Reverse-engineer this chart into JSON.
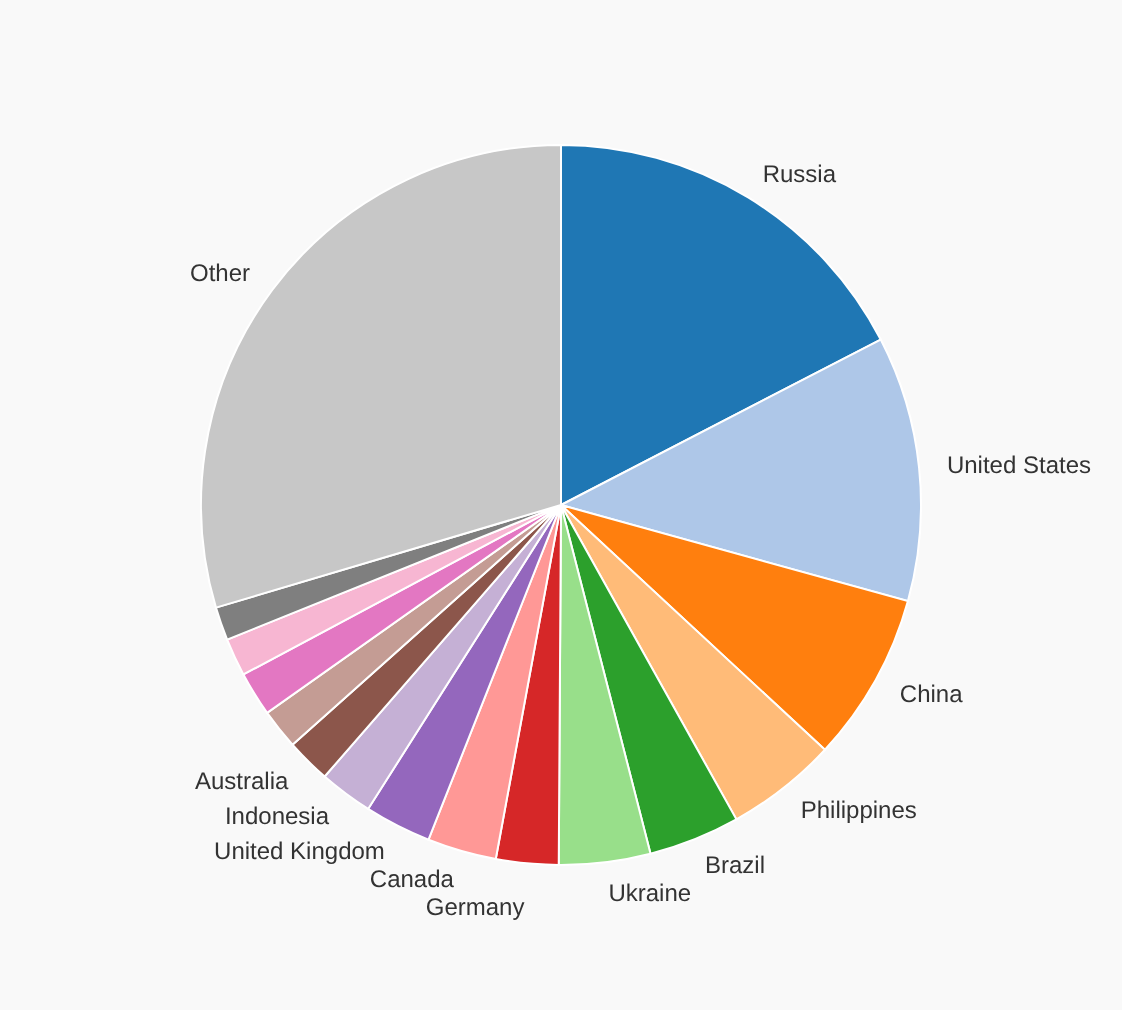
{
  "chart_data": {
    "type": "pie",
    "categories": [
      "Russia",
      "United States",
      "China",
      "Philippines",
      "Brazil",
      "Ukraine",
      "Germany",
      "Canada",
      "United Kingdom",
      "Indonesia",
      "Australia",
      null,
      null,
      null,
      null,
      "Other"
    ],
    "values": [
      17.4,
      11.9,
      7.6,
      5,
      4.1,
      4.1,
      2.8,
      3.1,
      3,
      2.4,
      2,
      1.8,
      2,
      1.7,
      1.5,
      29.6
    ],
    "colors": [
      "#1f77b4",
      "#aec7e8",
      "#ff7f0e",
      "#ffbb78",
      "#2ca02c",
      "#98df8a",
      "#d62728",
      "#ff9896",
      "#9467bd",
      "#c5b0d5",
      "#8c564b",
      "#c49c94",
      "#e377c2",
      "#f7b6d2",
      "#7f7f7f",
      "#c7c7c7"
    ]
  }
}
